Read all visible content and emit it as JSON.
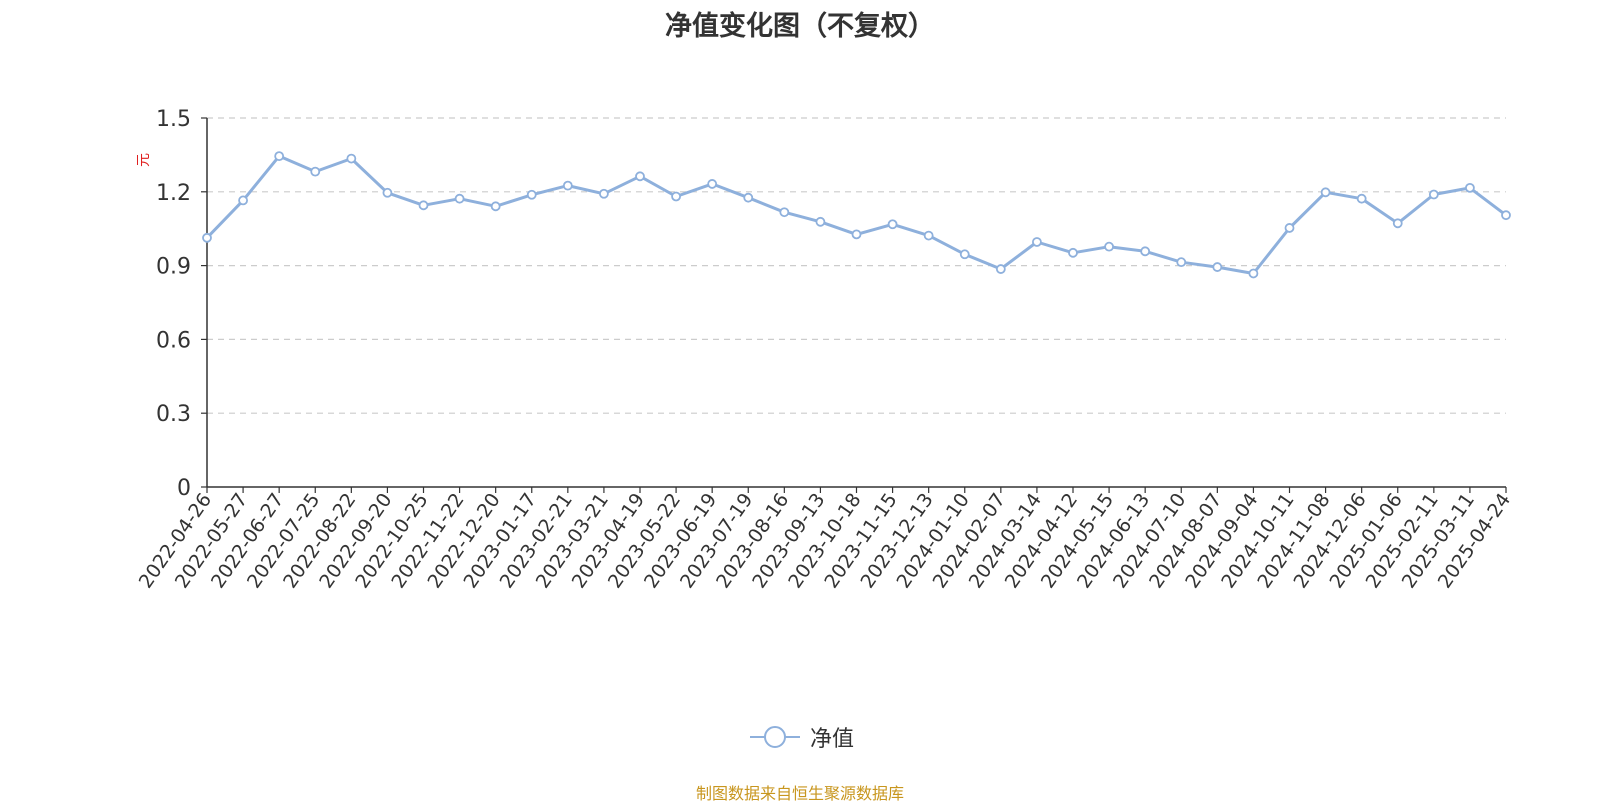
{
  "chart_data": {
    "type": "line",
    "title": "净值变化图（不复权）",
    "ylabel": "元",
    "ylim": [
      0,
      1.5
    ],
    "yticks": [
      "0",
      "0.3",
      "0.6",
      "0.9",
      "1.2",
      "1.5"
    ],
    "ytick_values": [
      0,
      0.3,
      0.6,
      0.9,
      1.2,
      1.5
    ],
    "grid": "horizontal dashed",
    "legend_position": "bottom-center",
    "categories": [
      "2022-04-26",
      "2022-05-27",
      "2022-06-27",
      "2022-07-25",
      "2022-08-22",
      "2022-09-20",
      "2022-10-25",
      "2022-11-22",
      "2022-12-20",
      "2023-01-17",
      "2023-02-21",
      "2023-03-21",
      "2023-04-19",
      "2023-05-22",
      "2023-06-19",
      "2023-07-19",
      "2023-08-16",
      "2023-09-13",
      "2023-10-18",
      "2023-11-15",
      "2023-12-13",
      "2024-01-10",
      "2024-02-07",
      "2024-03-14",
      "2024-04-12",
      "2024-05-15",
      "2024-06-13",
      "2024-07-10",
      "2024-08-07",
      "2024-09-04",
      "2024-10-11",
      "2024-11-08",
      "2024-12-06",
      "2025-01-06",
      "2025-02-11",
      "2025-03-11",
      "2025-04-24"
    ],
    "series": [
      {
        "name": "净值",
        "color": "#8eb0dc",
        "values": [
          1.013,
          1.165,
          1.345,
          1.282,
          1.335,
          1.196,
          1.145,
          1.172,
          1.141,
          1.188,
          1.225,
          1.192,
          1.263,
          1.181,
          1.232,
          1.176,
          1.117,
          1.078,
          1.027,
          1.068,
          1.022,
          0.946,
          0.886,
          0.996,
          0.952,
          0.977,
          0.958,
          0.914,
          0.894,
          0.868,
          1.053,
          1.198,
          1.172,
          1.072,
          1.189,
          1.216,
          1.105
        ]
      }
    ]
  },
  "source_note": "制图数据来自恒生聚源数据库"
}
